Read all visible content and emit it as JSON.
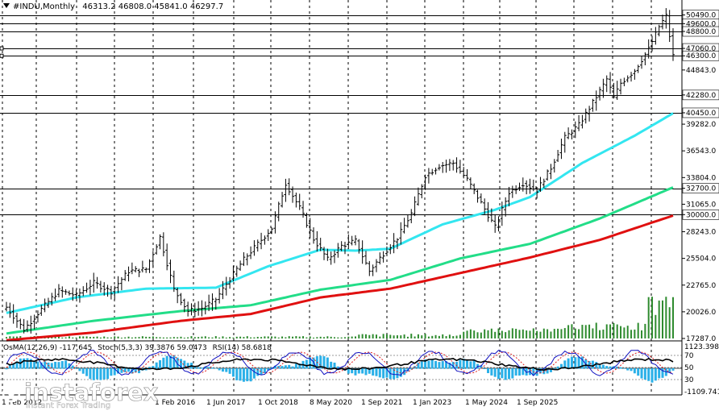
{
  "header": {
    "symbol": "#INDU,Monthly",
    "ohlc": "46313.2 46808.0 45841.0 46297.7"
  },
  "indicator_header": {
    "osma": "OsMA(12,26,9) -117.645",
    "stoch": "Stoch(5,3,3) 39.3876 59.0473",
    "rsi": "RSI(14) 58.6818"
  },
  "watermark": {
    "brand": "instaforex",
    "tagline": "Instant Forex Trading"
  },
  "colors": {
    "price_bars": "#000000",
    "ma_fast": "#33e6f0",
    "ma_mid": "#22dd88",
    "ma_slow": "#e01010",
    "volume": "#2e8b2e",
    "osma": "#2ab0e8",
    "stoch_main": "#1010c0",
    "stoch_signal": "#e02020",
    "rsi": "#000000"
  },
  "chart_data": {
    "type": "candlestick-bar",
    "timeframe": "Monthly",
    "ylim": [
      17287,
      51200
    ],
    "price_axis_labels": [
      50490,
      49600,
      48800,
      47060,
      46300,
      44843,
      42280,
      40450,
      39282,
      36543,
      33804,
      32700,
      31065,
      30000,
      28243,
      25504,
      22765,
      20026,
      17287
    ],
    "horizontal_levels": [
      50490,
      49600,
      48800,
      47060,
      46300,
      42280,
      40450,
      32700,
      30000
    ],
    "time_axis_labels": [
      "1 Feb 2012",
      "1 Feb 2016",
      "1 Jun 2017",
      "1 Oct 2018",
      "8 May 2020",
      "1 Sep 2021",
      "1 Jan 2023",
      "1 May 2024",
      "1 Sep 2025"
    ],
    "price_path": [
      {
        "i": 0,
        "close": 20500
      },
      {
        "i": 5,
        "close": 18200
      },
      {
        "i": 10,
        "close": 20300
      },
      {
        "i": 15,
        "close": 22200
      },
      {
        "i": 20,
        "close": 21700
      },
      {
        "i": 25,
        "close": 23000
      },
      {
        "i": 30,
        "close": 22100
      },
      {
        "i": 35,
        "close": 24200
      },
      {
        "i": 40,
        "close": 24400
      },
      {
        "i": 44,
        "close": 27700
      },
      {
        "i": 48,
        "close": 22300
      },
      {
        "i": 52,
        "close": 20100
      },
      {
        "i": 56,
        "close": 20400
      },
      {
        "i": 60,
        "close": 21300
      },
      {
        "i": 64,
        "close": 23400
      },
      {
        "i": 68,
        "close": 25400
      },
      {
        "i": 72,
        "close": 27000
      },
      {
        "i": 76,
        "close": 28600
      },
      {
        "i": 80,
        "close": 33200
      },
      {
        "i": 84,
        "close": 30700
      },
      {
        "i": 88,
        "close": 27500
      },
      {
        "i": 92,
        "close": 25400
      },
      {
        "i": 96,
        "close": 26800
      },
      {
        "i": 100,
        "close": 27300
      },
      {
        "i": 104,
        "close": 24200
      },
      {
        "i": 108,
        "close": 26000
      },
      {
        "i": 112,
        "close": 27600
      },
      {
        "i": 116,
        "close": 30100
      },
      {
        "i": 120,
        "close": 34000
      },
      {
        "i": 124,
        "close": 35000
      },
      {
        "i": 128,
        "close": 35300
      },
      {
        "i": 132,
        "close": 33600
      },
      {
        "i": 136,
        "close": 31200
      },
      {
        "i": 140,
        "close": 28700
      },
      {
        "i": 144,
        "close": 32300
      },
      {
        "i": 148,
        "close": 33200
      },
      {
        "i": 152,
        "close": 32500
      },
      {
        "i": 156,
        "close": 34800
      },
      {
        "i": 160,
        "close": 37900
      },
      {
        "i": 164,
        "close": 39200
      },
      {
        "i": 168,
        "close": 41500
      },
      {
        "i": 172,
        "close": 43900
      },
      {
        "i": 174,
        "close": 42000
      },
      {
        "i": 176,
        "close": 43500
      },
      {
        "i": 180,
        "close": 44800
      },
      {
        "i": 184,
        "close": 47000
      },
      {
        "i": 187,
        "close": 49300
      },
      {
        "i": 189,
        "close": 50400
      },
      {
        "i": 191,
        "close": 46298
      }
    ],
    "ma_fast_path": [
      {
        "i": 0,
        "v": 19900
      },
      {
        "i": 20,
        "v": 21500
      },
      {
        "i": 40,
        "v": 22400
      },
      {
        "i": 60,
        "v": 22500
      },
      {
        "i": 75,
        "v": 24700
      },
      {
        "i": 90,
        "v": 26400
      },
      {
        "i": 100,
        "v": 26300
      },
      {
        "i": 110,
        "v": 26500
      },
      {
        "i": 125,
        "v": 29000
      },
      {
        "i": 140,
        "v": 30500
      },
      {
        "i": 150,
        "v": 31800
      },
      {
        "i": 165,
        "v": 35300
      },
      {
        "i": 180,
        "v": 38100
      },
      {
        "i": 191,
        "v": 40400
      }
    ],
    "ma_mid_path": [
      {
        "i": 0,
        "v": 17800
      },
      {
        "i": 25,
        "v": 19100
      },
      {
        "i": 50,
        "v": 20100
      },
      {
        "i": 70,
        "v": 20700
      },
      {
        "i": 90,
        "v": 22300
      },
      {
        "i": 110,
        "v": 23300
      },
      {
        "i": 130,
        "v": 25500
      },
      {
        "i": 150,
        "v": 27000
      },
      {
        "i": 170,
        "v": 29600
      },
      {
        "i": 191,
        "v": 32800
      }
    ],
    "ma_slow_path": [
      {
        "i": 0,
        "v": 17100
      },
      {
        "i": 25,
        "v": 17900
      },
      {
        "i": 50,
        "v": 19100
      },
      {
        "i": 70,
        "v": 19800
      },
      {
        "i": 90,
        "v": 21500
      },
      {
        "i": 110,
        "v": 22400
      },
      {
        "i": 130,
        "v": 24000
      },
      {
        "i": 150,
        "v": 25600
      },
      {
        "i": 170,
        "v": 27400
      },
      {
        "i": 191,
        "v": 29900
      }
    ],
    "indicator_axis_labels": [
      "1123.398",
      "70",
      "50",
      "30",
      "-1109.741"
    ],
    "indicator_levels": [
      70,
      50,
      30
    ]
  }
}
